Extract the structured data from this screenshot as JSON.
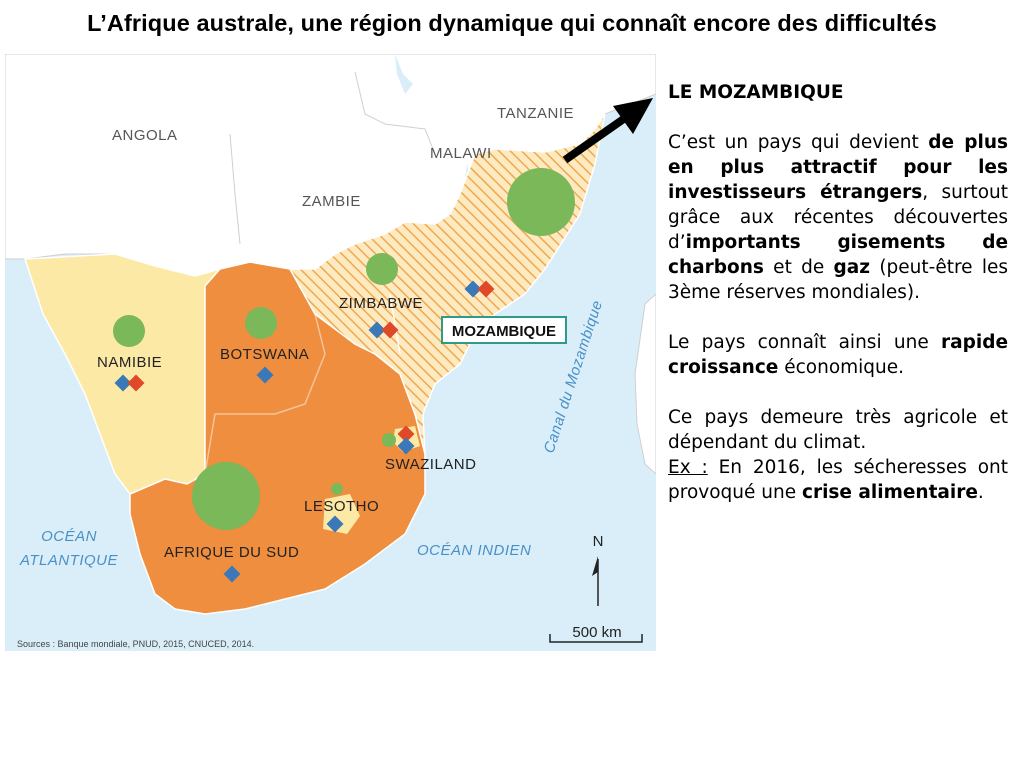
{
  "title": "L’Afrique australe, une région dynamique qui connaît encore des difficultés",
  "map": {
    "countries": {
      "angola": "ANGOLA",
      "zambie": "ZAMBIE",
      "malawi": "MALAWI",
      "tanzanie": "TANZANIE",
      "zimbabwe": "ZIMBABWE",
      "mozambique": "MOZAMBIQUE",
      "namibie": "NAMIBIE",
      "botswana": "BOTSWANA",
      "swaziland": "SWAZILAND",
      "lesotho": "LESOTHO",
      "afrique_du_sud": "AFRIQUE DU SUD"
    },
    "oceans": {
      "atlantique_1": "OCÉAN",
      "atlantique_2": "ATLANTIQUE",
      "indien": "OCÉAN INDIEN",
      "canal": "Canal du Mozambique"
    },
    "north": "N",
    "scale": "500 km",
    "sources": "Sources : Banque mondiale, PNUD, 2015, CNUCED, 2014.",
    "colors": {
      "sea": "#d9eef8",
      "land_other": "#ffffff",
      "light_yellow": "#fde9a6",
      "orange": "#ee8e3e",
      "hatch": "#f0a850",
      "green_circle": "#7ab85a",
      "blue_diamond": "#3a78b8",
      "red_diamond": "#e0482a"
    }
  },
  "side": {
    "heading": "LE MOZAMBIQUE",
    "p1_a": "C’est un pays qui devient ",
    "p1_b": "de plus en plus attractif pour les investisseurs étrangers",
    "p1_c": ", surtout grâce aux récentes  découvertes d’",
    "p1_d": "importants gisements de charbons",
    "p1_e": " et de ",
    "p1_f": "gaz",
    "p1_g": " (peut-être les 3ème réserves mondiales).",
    "p2_a": "Le pays connaît ainsi une ",
    "p2_b": "rapide croissance",
    "p2_c": " économique.",
    "p3_a": "Ce pays demeure très agricole et dépendant du climat.",
    "p3_ex": "Ex :",
    "p3_b": " En 2016, les sécheresses ont provoqué une ",
    "p3_c": "crise alimentaire",
    "p3_d": "."
  }
}
